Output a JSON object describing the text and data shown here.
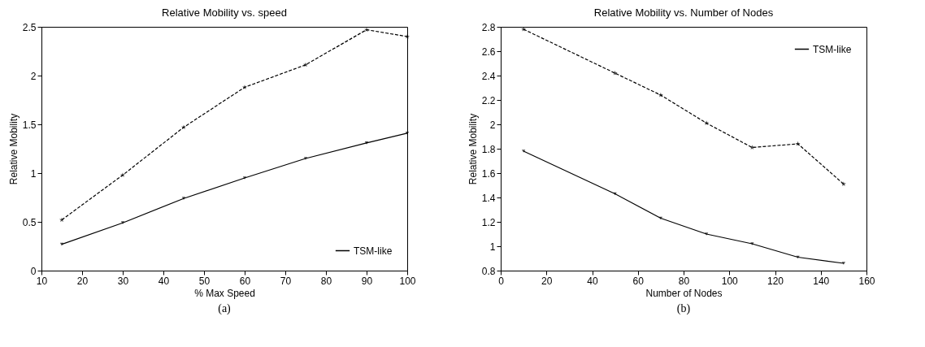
{
  "chart_data": [
    {
      "type": "line",
      "title": "Relative Mobility vs. speed",
      "xlabel": "% Max Speed",
      "ylabel": "Relative Mobility",
      "annotations": [
        "(a)"
      ],
      "x": [
        15,
        30,
        45,
        60,
        75,
        90,
        100
      ],
      "series": [
        {
          "name": "TSM-like",
          "color": "#000000",
          "marker": "triangle",
          "line_style": "solid",
          "values": [
            0.27,
            0.49,
            0.74,
            0.95,
            1.15,
            1.31,
            1.41
          ]
        },
        {
          "color": "#000000",
          "marker": "star",
          "line_style": "dashed",
          "values": [
            0.52,
            0.98,
            1.47,
            1.88,
            2.11,
            2.47,
            2.4
          ]
        }
      ],
      "xlim": [
        10,
        100
      ],
      "xticks": [
        10,
        20,
        30,
        40,
        50,
        60,
        70,
        80,
        90,
        100
      ],
      "ylim": [
        0,
        2.5
      ],
      "yticks": [
        0,
        0.5,
        1,
        1.5,
        2,
        2.5
      ],
      "legend": "bottom right"
    },
    {
      "type": "line",
      "title": "Relative Mobility vs. Number of Nodes",
      "xlabel": "Number of Nodes",
      "ylabel": "Relative Mobility",
      "annotations": [
        "(b)"
      ],
      "x": [
        10,
        50,
        70,
        90,
        110,
        130,
        150
      ],
      "series": [
        {
          "name": "TSM-like",
          "color": "#000000",
          "marker": "triangle",
          "line_style": "solid",
          "values": [
            1.78,
            1.43,
            1.23,
            1.1,
            1.02,
            0.91,
            0.86
          ]
        },
        {
          "color": "#000000",
          "marker": "star",
          "line_style": "dashed",
          "values": [
            2.78,
            2.42,
            2.24,
            2.01,
            1.81,
            1.84,
            1.51
          ]
        }
      ],
      "xlim": [
        0,
        160
      ],
      "xticks": [
        0,
        20,
        40,
        60,
        80,
        100,
        120,
        140,
        160
      ],
      "ylim": [
        0.8,
        2.8
      ],
      "yticks": [
        0.8,
        1,
        1.2,
        1.4,
        1.6,
        1.8,
        2,
        2.2,
        2.4,
        2.6,
        2.8
      ],
      "legend": "top right"
    }
  ]
}
